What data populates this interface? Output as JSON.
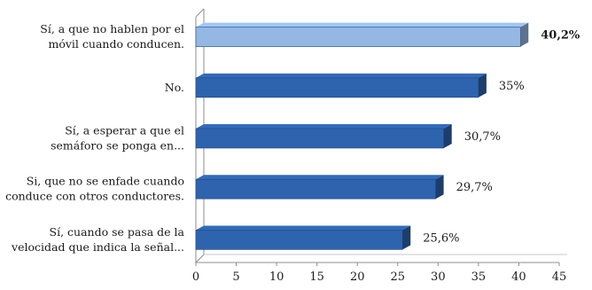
{
  "chart_data": {
    "type": "bar",
    "orientation": "horizontal",
    "style": "3d",
    "categories": [
      [
        "Sí, a que no hablen por el",
        "móvil cuando conducen."
      ],
      [
        "No."
      ],
      [
        "Sí, a esperar a que el",
        "semáforo se ponga en..."
      ],
      [
        "Si, que no se enfade cuando",
        "conduce con otros conductores."
      ],
      [
        "Sí, cuando se pasa de la",
        "velocidad que indica la señal..."
      ]
    ],
    "values": [
      40.2,
      35,
      30.7,
      29.7,
      25.6
    ],
    "data_labels": [
      "40,2%",
      "35%",
      "30,7%",
      "29,7%",
      "25,6%"
    ],
    "highlight_index": 0,
    "xlim": [
      0,
      45
    ],
    "xticks": [
      "0",
      "5",
      "10",
      "15",
      "20",
      "25",
      "30",
      "35",
      "40",
      "45"
    ],
    "grid": false,
    "legend": "none",
    "colors": {
      "bar": "#2e63ad",
      "bar_highlight": "#95b8e3",
      "bar_edge": "#1f4a86",
      "axis": "#8c8c8c"
    }
  }
}
